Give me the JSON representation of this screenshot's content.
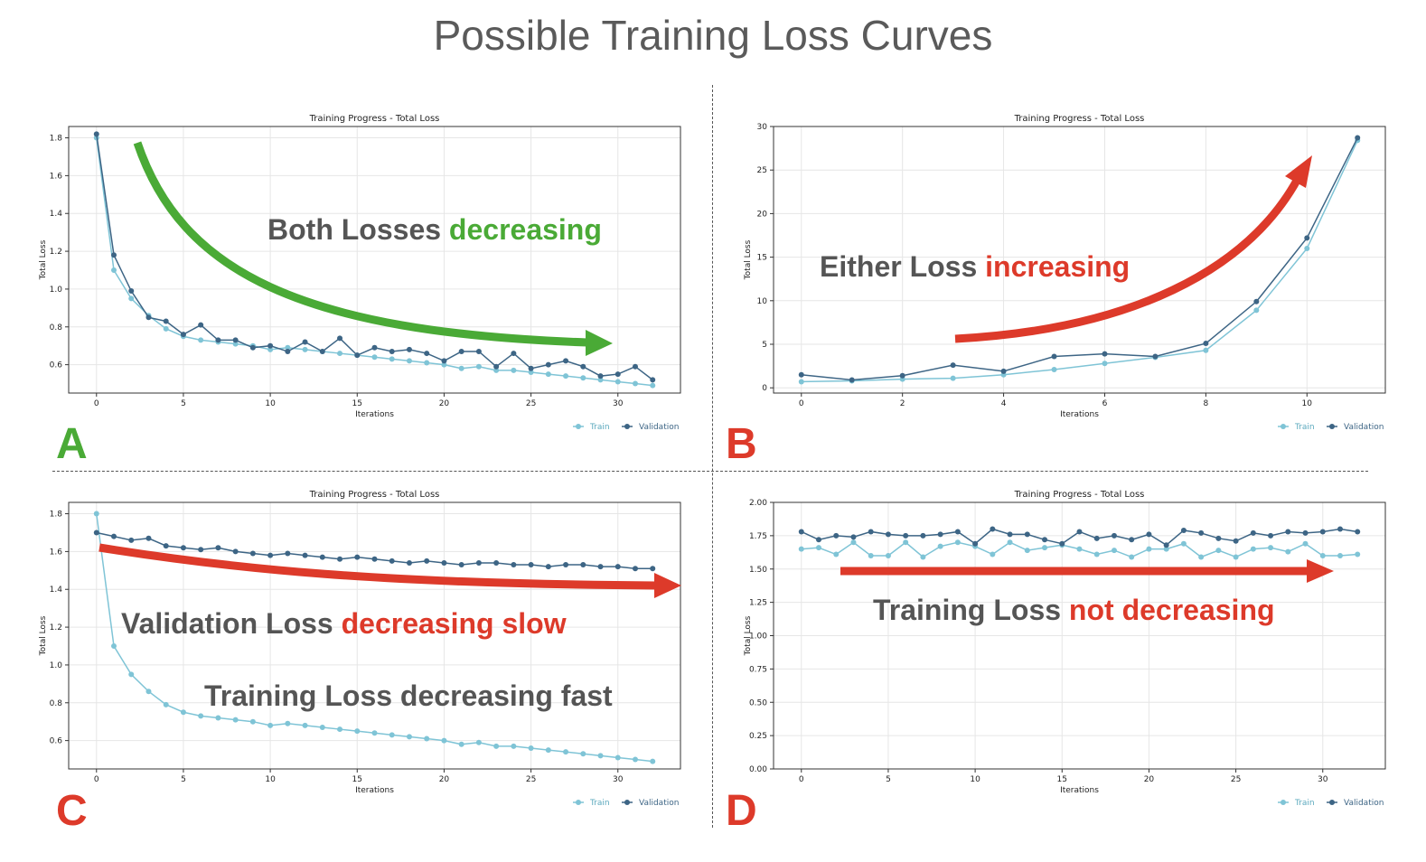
{
  "page_title": "Possible Training Loss Curves",
  "colors": {
    "train": "#7fc4d6",
    "validation": "#3d6585",
    "green": "#4aaa36",
    "red": "#dd3a2a",
    "annot_gray": "#555555"
  },
  "panels": [
    {
      "letter": "A",
      "letter_color": "#4aaa36",
      "annotation_prefix": "Both Losses ",
      "annotation_highlight": "decreasing",
      "annotation_highlight_color": "#4aaa36",
      "arrow_color": "#4aaa36",
      "arrow_direction": "curved-down-right"
    },
    {
      "letter": "B",
      "letter_color": "#dd3a2a",
      "annotation_prefix": "Either Loss ",
      "annotation_highlight": "increasing",
      "annotation_highlight_color": "#dd3a2a",
      "arrow_color": "#dd3a2a",
      "arrow_direction": "curved-up-right"
    },
    {
      "letter": "C",
      "letter_color": "#dd3a2a",
      "annotation_prefix": "Validation Loss ",
      "annotation_highlight": "decreasing slow",
      "annotation_highlight_color": "#dd3a2a",
      "annotation2": "Training Loss decreasing fast",
      "arrow_color": "#dd3a2a",
      "arrow_direction": "slight-down-right"
    },
    {
      "letter": "D",
      "letter_color": "#dd3a2a",
      "annotation_prefix": "Training Loss ",
      "annotation_highlight": "not decreasing",
      "annotation_highlight_color": "#dd3a2a",
      "arrow_color": "#dd3a2a",
      "arrow_direction": "right"
    }
  ],
  "chart_data": [
    {
      "type": "line",
      "title": "Training Progress - Total Loss",
      "xlabel": "Iterations",
      "ylabel": "Total Loss",
      "xlim": [
        -1.6,
        33.6
      ],
      "ylim": [
        0.45,
        1.86
      ],
      "xticks": [
        0,
        5,
        10,
        15,
        20,
        25,
        30
      ],
      "yticks": [
        0.6,
        0.8,
        1.0,
        1.2,
        1.4,
        1.6,
        1.8
      ],
      "ytick_labels": [
        "0.6",
        "0.8",
        "1.0",
        "1.2",
        "1.4",
        "1.6",
        "1.8"
      ],
      "grid": true,
      "legend": "bottom-right",
      "series": [
        {
          "name": "Train",
          "values": [
            1.8,
            1.1,
            0.95,
            0.86,
            0.79,
            0.75,
            0.73,
            0.72,
            0.71,
            0.7,
            0.68,
            0.69,
            0.68,
            0.67,
            0.66,
            0.65,
            0.64,
            0.63,
            0.62,
            0.61,
            0.6,
            0.58,
            0.59,
            0.57,
            0.57,
            0.56,
            0.55,
            0.54,
            0.53,
            0.52,
            0.51,
            0.5,
            0.49
          ]
        },
        {
          "name": "Validation",
          "values": [
            1.82,
            1.18,
            0.99,
            0.85,
            0.83,
            0.76,
            0.81,
            0.73,
            0.73,
            0.69,
            0.7,
            0.67,
            0.72,
            0.67,
            0.74,
            0.65,
            0.69,
            0.67,
            0.68,
            0.66,
            0.62,
            0.67,
            0.67,
            0.59,
            0.66,
            0.58,
            0.6,
            0.62,
            0.59,
            0.54,
            0.55,
            0.59,
            0.52
          ]
        }
      ]
    },
    {
      "type": "line",
      "title": "Training Progress - Total Loss",
      "xlabel": "Iterations",
      "ylabel": "Total Loss",
      "xlim": [
        -0.55,
        11.55
      ],
      "ylim": [
        -0.6,
        30
      ],
      "xticks": [
        0,
        2,
        4,
        6,
        8,
        10
      ],
      "yticks": [
        0,
        5,
        10,
        15,
        20,
        25,
        30
      ],
      "ytick_labels": [
        "0",
        "5",
        "10",
        "15",
        "20",
        "25",
        "30"
      ],
      "grid": true,
      "legend": "bottom-right",
      "series": [
        {
          "name": "Train",
          "values": [
            0.7,
            0.8,
            1.0,
            1.1,
            1.5,
            2.1,
            2.8,
            3.5,
            4.3,
            8.9,
            16.0,
            28.4
          ]
        },
        {
          "name": "Validation",
          "values": [
            1.5,
            0.9,
            1.4,
            2.6,
            1.9,
            3.6,
            3.9,
            3.6,
            5.1,
            9.9,
            17.2,
            28.7
          ]
        }
      ]
    },
    {
      "type": "line",
      "title": "Training Progress - Total Loss",
      "xlabel": "Iterations",
      "ylabel": "Total Loss",
      "xlim": [
        -1.6,
        33.6
      ],
      "ylim": [
        0.45,
        1.86
      ],
      "xticks": [
        0,
        5,
        10,
        15,
        20,
        25,
        30
      ],
      "yticks": [
        0.6,
        0.8,
        1.0,
        1.2,
        1.4,
        1.6,
        1.8
      ],
      "ytick_labels": [
        "0.6",
        "0.8",
        "1.0",
        "1.2",
        "1.4",
        "1.6",
        "1.8"
      ],
      "grid": true,
      "legend": "bottom-right",
      "series": [
        {
          "name": "Train",
          "values": [
            1.8,
            1.1,
            0.95,
            0.86,
            0.79,
            0.75,
            0.73,
            0.72,
            0.71,
            0.7,
            0.68,
            0.69,
            0.68,
            0.67,
            0.66,
            0.65,
            0.64,
            0.63,
            0.62,
            0.61,
            0.6,
            0.58,
            0.59,
            0.57,
            0.57,
            0.56,
            0.55,
            0.54,
            0.53,
            0.52,
            0.51,
            0.5,
            0.49
          ]
        },
        {
          "name": "Validation",
          "values": [
            1.7,
            1.68,
            1.66,
            1.67,
            1.63,
            1.62,
            1.61,
            1.62,
            1.6,
            1.59,
            1.58,
            1.59,
            1.58,
            1.57,
            1.56,
            1.57,
            1.56,
            1.55,
            1.54,
            1.55,
            1.54,
            1.53,
            1.54,
            1.54,
            1.53,
            1.53,
            1.52,
            1.53,
            1.53,
            1.52,
            1.52,
            1.51,
            1.51
          ]
        }
      ]
    },
    {
      "type": "line",
      "title": "Training Progress - Total Loss",
      "xlabel": "Iterations",
      "ylabel": "Total Loss",
      "xlim": [
        -1.6,
        33.6
      ],
      "ylim": [
        0,
        2.0
      ],
      "xticks": [
        0,
        5,
        10,
        15,
        20,
        25,
        30
      ],
      "yticks": [
        0,
        0.25,
        0.5,
        0.75,
        1.0,
        1.25,
        1.5,
        1.75,
        2.0
      ],
      "ytick_labels": [
        "0.00",
        "0.25",
        "0.50",
        "0.75",
        "1.00",
        "1.25",
        "1.50",
        "1.75",
        "2.00"
      ],
      "grid": true,
      "legend": "bottom-right",
      "series": [
        {
          "name": "Train",
          "values": [
            1.65,
            1.66,
            1.61,
            1.7,
            1.6,
            1.6,
            1.7,
            1.59,
            1.67,
            1.7,
            1.67,
            1.61,
            1.7,
            1.64,
            1.66,
            1.68,
            1.65,
            1.61,
            1.64,
            1.59,
            1.65,
            1.65,
            1.69,
            1.59,
            1.64,
            1.59,
            1.65,
            1.66,
            1.63,
            1.69,
            1.6,
            1.6,
            1.61
          ]
        },
        {
          "name": "Validation",
          "values": [
            1.78,
            1.72,
            1.75,
            1.74,
            1.78,
            1.76,
            1.75,
            1.75,
            1.76,
            1.78,
            1.69,
            1.8,
            1.76,
            1.76,
            1.72,
            1.69,
            1.78,
            1.73,
            1.75,
            1.72,
            1.76,
            1.68,
            1.79,
            1.77,
            1.73,
            1.71,
            1.77,
            1.75,
            1.78,
            1.77,
            1.78,
            1.8,
            1.78
          ]
        }
      ]
    }
  ]
}
